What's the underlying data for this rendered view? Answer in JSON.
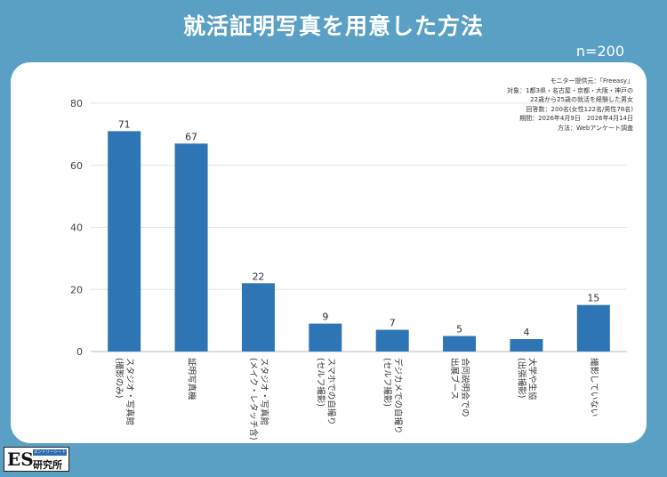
{
  "title": "就活証明写真を用意した方法",
  "sample_size": "n=200",
  "notes": [
    "モニター提供元：「Freeasy」",
    "対象：1都3県・名古屋・京都・大阪・神戸の",
    "22歳から25歳の就活を経験した男女",
    "回答数：200名(女性122名/男性78名)",
    "期間：2026年4月9日　2026年4月14日",
    "方法：Webアンケート調査"
  ],
  "logo": {
    "es": "ES",
    "sub": "エントリーシート",
    "main": "研究所"
  },
  "colors": {
    "background": "#5aa0c4",
    "bar": "#2e75b6",
    "card": "#ffffff"
  },
  "chart_data": {
    "type": "bar",
    "categories": [
      [
        "スタジオ・写真館",
        "(撮影のみ)"
      ],
      [
        "証明写真機"
      ],
      [
        "スタジオ・写真館",
        "(メイク・レタッチ含)"
      ],
      [
        "スマホでの自撮り",
        "(セルフ撮影)"
      ],
      [
        "デジカメでの自撮り",
        "(セルフ撮影)"
      ],
      [
        "合同説明会での",
        "出展ブース"
      ],
      [
        "大学や生協",
        "(出張撮影)"
      ],
      [
        "撮影していない"
      ]
    ],
    "values": [
      71,
      67,
      22,
      9,
      7,
      5,
      4,
      15
    ],
    "ylim": [
      0,
      80
    ],
    "yticks": [
      0,
      20,
      40,
      60,
      80
    ],
    "grid": true,
    "value_labels": true
  }
}
